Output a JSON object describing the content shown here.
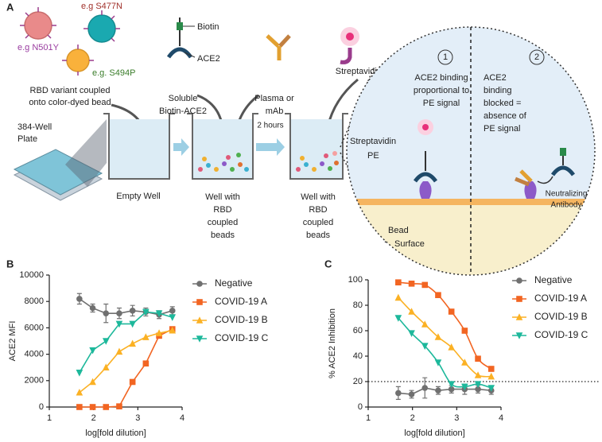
{
  "panel_a": {
    "label": "A",
    "beads": [
      "e.g S477N",
      "e.g N501Y",
      "e.g. S494P"
    ],
    "rbd_caption": [
      "RBD variant coupled",
      "onto color-dyed bead"
    ],
    "plate": [
      "384-Well",
      "Plate"
    ],
    "ace2_parts": [
      "Biotin",
      "ACE2"
    ],
    "soluble": [
      "Soluble",
      "Biotin-ACE2"
    ],
    "plasma": [
      "Plasma or",
      "mAb"
    ],
    "streptavidin": "Streptavidin-PE",
    "empty_well": "Empty Well",
    "incubation": "2 hours",
    "well_beads_1": [
      "Well with",
      "RBD",
      "coupled",
      "beads"
    ],
    "well_beads_2": [
      "Well with",
      "RBD",
      "coupled",
      "beads"
    ],
    "inset": {
      "step_1": "1",
      "step_2": "2",
      "binding_text": [
        "ACE2 binding",
        "proportional to",
        "PE signal"
      ],
      "blocked_text": [
        "ACE2",
        "binding",
        "blocked =",
        "absence of",
        "PE signal"
      ],
      "pe_label": [
        "Streptavidin",
        "PE"
      ],
      "antibody_label": [
        "Neutralizing",
        "Antibody"
      ],
      "surface_label": [
        "Bead",
        "Surface"
      ]
    }
  },
  "chart_data": [
    {
      "type": "line",
      "panel_label": "B",
      "x_label": "log[fold dilution]",
      "y_label": "ACE2 MFI",
      "xlim": [
        1,
        4
      ],
      "xticks": [
        1,
        2,
        3,
        4
      ],
      "ylim": [
        0,
        10000
      ],
      "yticks": [
        0,
        2000,
        4000,
        6000,
        8000,
        10000
      ],
      "x": [
        1.68,
        1.98,
        2.28,
        2.58,
        2.88,
        3.18,
        3.48,
        3.78
      ],
      "series": [
        {
          "name": "Negative",
          "color": "#707070",
          "marker": "circle",
          "smooth": false,
          "values": [
            8200,
            7500,
            7100,
            7100,
            7300,
            7200,
            7000,
            7300
          ],
          "errors": [
            400,
            300,
            700,
            400,
            400,
            300,
            300,
            300
          ]
        },
        {
          "name": "COVID-19 A",
          "color": "#f26522",
          "marker": "square",
          "smooth": false,
          "values": [
            0,
            0,
            0,
            50,
            1900,
            3300,
            5400,
            5900
          ]
        },
        {
          "name": "COVID-19 B",
          "color": "#fbb124",
          "marker": "triangle-up",
          "smooth": false,
          "values": [
            1100,
            1900,
            3000,
            4200,
            4800,
            5300,
            5600,
            5800
          ]
        },
        {
          "name": "COVID-19 C",
          "color": "#1db89b",
          "marker": "triangle-down",
          "smooth": false,
          "values": [
            2600,
            4300,
            5000,
            6300,
            6300,
            7200,
            7100,
            6800
          ]
        }
      ]
    },
    {
      "type": "scatter",
      "panel_label": "C",
      "x_label": "log[fold dilution]",
      "y_label": "% ACE2 Inhibition",
      "xlim": [
        1,
        4
      ],
      "xticks": [
        1,
        2,
        3,
        4
      ],
      "ylim": [
        0,
        100
      ],
      "yticks": [
        0,
        20,
        40,
        60,
        80,
        100
      ],
      "refline": 20,
      "x": [
        1.68,
        1.98,
        2.28,
        2.58,
        2.88,
        3.18,
        3.48,
        3.78
      ],
      "series": [
        {
          "name": "Negative",
          "color": "#707070",
          "marker": "circle",
          "smooth": false,
          "values": [
            11,
            10,
            15,
            13,
            14,
            14,
            14,
            13
          ],
          "errors": [
            5,
            3,
            8,
            3,
            3,
            4,
            3,
            3
          ]
        },
        {
          "name": "COVID-19 A",
          "color": "#f26522",
          "marker": "square",
          "smooth": true,
          "values": [
            98,
            97,
            96,
            88,
            75,
            60,
            38,
            30
          ]
        },
        {
          "name": "COVID-19 B",
          "color": "#fbb124",
          "marker": "triangle-up",
          "smooth": true,
          "values": [
            86,
            75,
            65,
            55,
            47,
            35,
            25,
            24
          ]
        },
        {
          "name": "COVID-19 C",
          "color": "#1db89b",
          "marker": "triangle-down",
          "smooth": true,
          "values": [
            70,
            58,
            48,
            35,
            18,
            16,
            18,
            15
          ]
        }
      ]
    }
  ]
}
